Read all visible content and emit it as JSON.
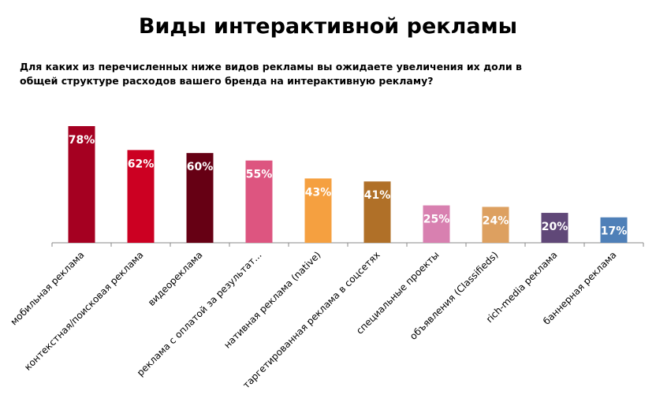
{
  "chart_data": {
    "type": "bar",
    "title": "Виды интерактивной рекламы",
    "subtitle": "Для каких из перечисленных ниже видов рекламы вы ожидаете увеличения их доли в общей структуре расходов вашего бренда на интерактивную рекламу?",
    "categories": [
      "мобильная реклама",
      "контекстная/поисковая реклама",
      "видеореклама",
      "реклама с оплатой за результат...",
      "нативная реклама (native)",
      "таргетированная реклама в соцсетях",
      "специальные проекты",
      "объявления (Classifieds)",
      "rich-media реклама",
      "баннерная реклама"
    ],
    "values": [
      78,
      62,
      60,
      55,
      43,
      41,
      25,
      24,
      20,
      17
    ],
    "data_labels": [
      "78%",
      "62%",
      "60%",
      "55%",
      "43%",
      "41%",
      "25%",
      "24%",
      "20%",
      "17%"
    ],
    "colors": [
      "#a50021",
      "#cc0022",
      "#660014",
      "#dd5580",
      "#f5a040",
      "#b07028",
      "#d880b0",
      "#dda060",
      "#604878",
      "#4f80b8"
    ],
    "unit": "%",
    "ylim": [
      0,
      80
    ],
    "grid": false,
    "legend": "none"
  }
}
